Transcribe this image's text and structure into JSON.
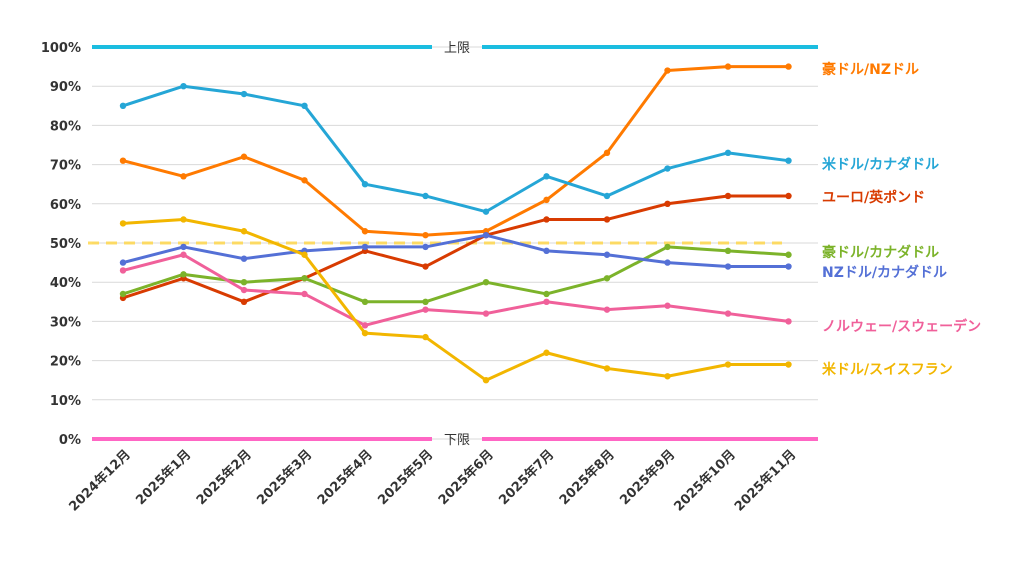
{
  "chart_data": {
    "type": "line",
    "title": "",
    "xlabel": "",
    "ylabel": "",
    "ylim": [
      0,
      100
    ],
    "y_ticks": [
      "0%",
      "10%",
      "20%",
      "30%",
      "40%",
      "50%",
      "60%",
      "70%",
      "80%",
      "90%",
      "100%"
    ],
    "grid": true,
    "legend": "right (inline labels at line ends)",
    "categories": [
      "2024年12月",
      "2025年1月",
      "2025年2月",
      "2025年3月",
      "2025年4月",
      "2025年5月",
      "2025年6月",
      "2025年7月",
      "2025年8月",
      "2025年9月",
      "2025年10月",
      "2025年11月"
    ],
    "reference_lines": [
      {
        "name": "upper-limit",
        "label": "上限",
        "value": 100,
        "color": "#1bbde0",
        "style": "solid"
      },
      {
        "name": "lower-limit",
        "label": "下限",
        "value": 0,
        "color": "#ff66c4",
        "style": "solid"
      },
      {
        "name": "midline",
        "label": "",
        "value": 50,
        "color": "#ffd84d",
        "style": "dashed"
      }
    ],
    "series": [
      {
        "name": "豪ドル/NZドル",
        "color": "#ff7a00",
        "values": [
          71,
          67,
          72,
          66,
          53,
          52,
          53,
          61,
          73,
          94,
          95,
          95
        ]
      },
      {
        "name": "米ドル/カナダドル",
        "color": "#25a6d6",
        "values": [
          85,
          90,
          88,
          85,
          65,
          62,
          58,
          67,
          62,
          69,
          73,
          71
        ]
      },
      {
        "name": "ユーロ/英ポンド",
        "color": "#d83b01",
        "values": [
          36,
          41,
          35,
          41,
          48,
          44,
          52,
          56,
          56,
          60,
          62,
          62
        ]
      },
      {
        "name": "豪ドル/カナダドル",
        "color": "#7cb32a",
        "values": [
          37,
          42,
          40,
          41,
          35,
          35,
          40,
          37,
          41,
          49,
          48,
          47
        ]
      },
      {
        "name": "NZドル/カナダドル",
        "color": "#5470d6",
        "values": [
          45,
          49,
          46,
          48,
          49,
          49,
          52,
          48,
          47,
          45,
          44,
          44
        ]
      },
      {
        "name": "ノルウェー/スウェーデン",
        "color": "#f0609a",
        "values": [
          43,
          47,
          38,
          37,
          29,
          33,
          32,
          35,
          33,
          34,
          32,
          30
        ]
      },
      {
        "name": "米ドル/スイスフラン",
        "color": "#f2b600",
        "values": [
          55,
          56,
          53,
          47,
          27,
          26,
          15,
          22,
          18,
          16,
          19,
          19
        ]
      }
    ]
  }
}
